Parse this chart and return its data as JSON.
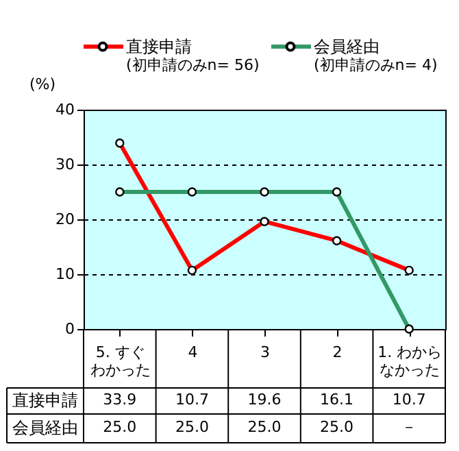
{
  "chart_data": {
    "type": "line",
    "ylabel": "(%)",
    "categories": [
      "5. すぐわかった",
      "4",
      "3",
      "2",
      "1. わからなかった"
    ],
    "series": [
      {
        "name": "直接申請",
        "color": "#ff0000",
        "values": [
          33.9,
          10.7,
          19.6,
          16.1,
          10.7
        ],
        "value_labels": [
          "33.9",
          "10.7",
          "19.6",
          "16.1",
          "10.7"
        ]
      },
      {
        "name": "会員経由",
        "color": "#339966",
        "values": [
          25.0,
          25.0,
          25.0,
          25.0,
          0
        ],
        "value_labels": [
          "25.0",
          "25.0",
          "25.0",
          "25.0",
          "－"
        ]
      }
    ],
    "annotations": [
      "(初申請のみn= 56)",
      "(初申請のみn=  4)"
    ],
    "ylim": [
      0,
      40
    ],
    "yticks": [
      0,
      10,
      20,
      30,
      40
    ],
    "grid": "y",
    "legend": "top",
    "marker": "circle",
    "line_style": "solid"
  }
}
